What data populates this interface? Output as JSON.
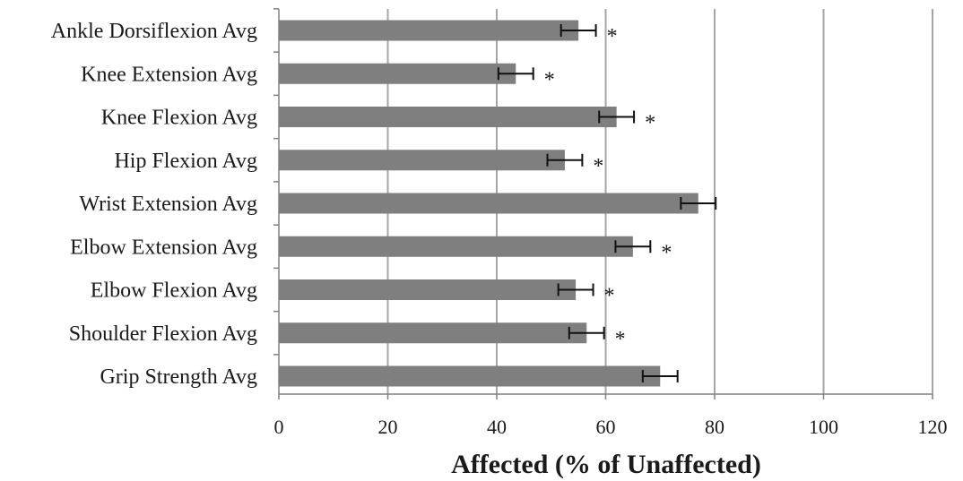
{
  "chart_data": {
    "type": "bar",
    "orientation": "horizontal",
    "categories": [
      "Ankle Dorsiflexion Avg",
      "Knee Extension Avg",
      "Knee Flexion Avg",
      "Hip Flexion Avg",
      "Wrist Extension Avg",
      "Elbow Extension Avg",
      "Elbow Flexion Avg",
      "Shoulder Flexion Avg",
      "Grip Strength Avg"
    ],
    "values": [
      55,
      43.5,
      62,
      52.5,
      77,
      65,
      54.5,
      56.5,
      70
    ],
    "error": [
      3.2,
      3.2,
      3.2,
      3.2,
      3.2,
      3.2,
      3.2,
      3.2,
      3.2
    ],
    "significance": [
      "*",
      "*",
      "*",
      "*",
      "",
      "*",
      "*",
      "*",
      ""
    ],
    "xlabel": "Affected (% of Unaffected)",
    "xlim": [
      0,
      120
    ],
    "xticks": [
      "0",
      "20",
      "40",
      "60",
      "80",
      "100",
      "120"
    ],
    "grid": "vertical",
    "legend": "none",
    "colors": {
      "bar": "#7f7f7f",
      "grid": "#a6a6a6",
      "text": "#1a1a1a"
    }
  }
}
